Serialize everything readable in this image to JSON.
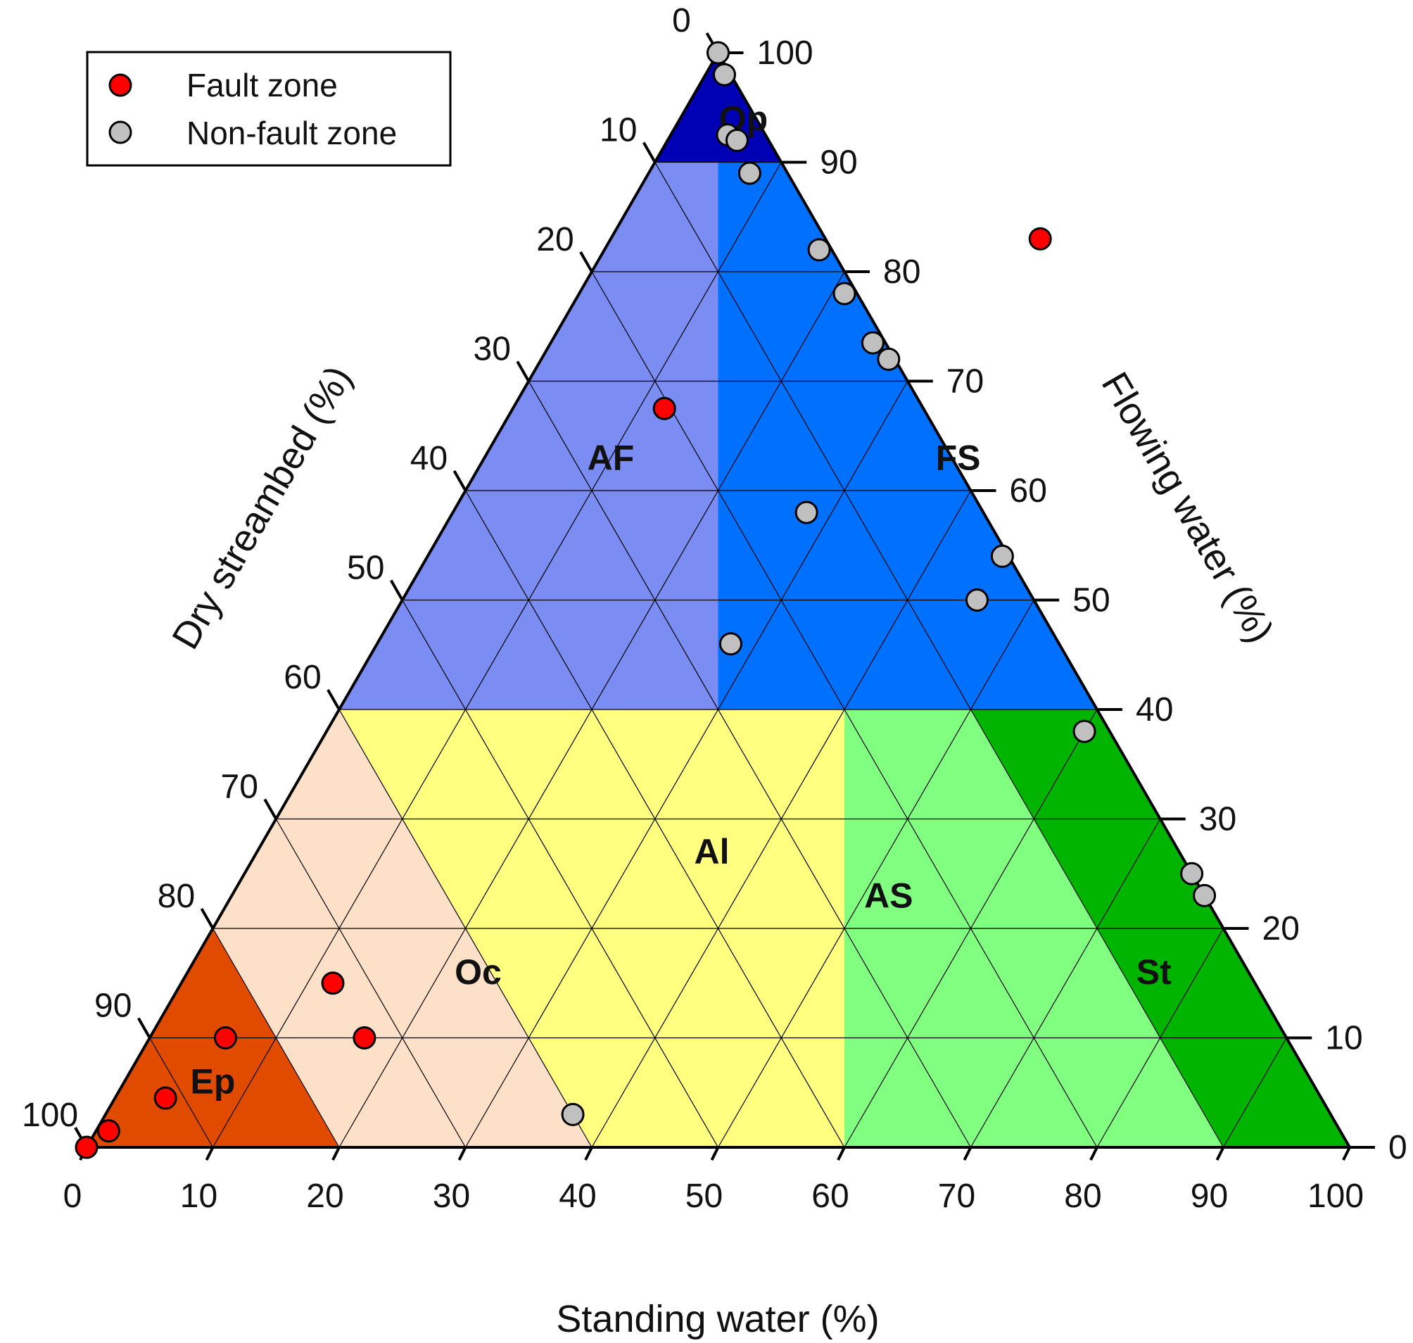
{
  "chart_data": {
    "type": "scatter",
    "subtype": "ternary",
    "axes": {
      "bottom": {
        "label": "Standing water (%)",
        "ticks": [
          0,
          10,
          20,
          30,
          40,
          50,
          60,
          70,
          80,
          90,
          100
        ],
        "range": [
          0,
          100
        ]
      },
      "left": {
        "label": "Dry streambed (%)",
        "ticks": [
          0,
          10,
          20,
          30,
          40,
          50,
          60,
          70,
          80,
          90,
          100
        ],
        "range": [
          0,
          100
        ]
      },
      "right": {
        "label": "Flowing water (%)",
        "ticks": [
          0,
          10,
          20,
          30,
          40,
          50,
          60,
          70,
          80,
          90,
          100
        ],
        "range": [
          0,
          100
        ]
      }
    },
    "grid": true,
    "grid_step": 10,
    "legend": {
      "position": "top-left",
      "items": [
        {
          "label": "Fault zone",
          "color": "#ff0000"
        },
        {
          "label": "Non-fault zone",
          "color": "#c0c0c0"
        }
      ]
    },
    "regions": [
      {
        "label": "Qp",
        "color": "#0000b4",
        "rule": "flowing >= 90"
      },
      {
        "label": "AF",
        "color": "#7b8cf3",
        "rule": "40 <= flowing < 90 and standing < 30"
      },
      {
        "label": "FS",
        "color": "#0070ff",
        "rule": "40 <= flowing < 90 and standing >= 30"
      },
      {
        "label": "Ep",
        "color": "#e14b00",
        "rule": "flowing < 40 and dry >= 80"
      },
      {
        "label": "Oc",
        "color": "#fde0c8",
        "rule": "flowing < 40 and 60 <= dry < 80"
      },
      {
        "label": "Al",
        "color": "#ffff80",
        "rule": "flowing < 40 and 40 <= dry < 60"
      },
      {
        "label": "AS",
        "color": "#80ff80",
        "rule": "flowing < 40 and 10 <= dry < 40"
      },
      {
        "label": "St",
        "color": "#00b400",
        "rule": "flowing < 40 and dry < 10"
      }
    ],
    "series": [
      {
        "name": "Fault zone",
        "color": "#ff0000",
        "points": [
          {
            "standing": 0,
            "flowing": 0
          },
          {
            "standing": 1,
            "flowing": 1.5
          },
          {
            "standing": 4,
            "flowing": 4.5
          },
          {
            "standing": 6,
            "flowing": 10
          },
          {
            "standing": 12,
            "flowing": 15
          },
          {
            "standing": 17,
            "flowing": 10
          },
          {
            "standing": 34,
            "flowing": 83
          },
          {
            "standing": 12,
            "flowing": 67.5
          }
        ]
      },
      {
        "name": "Non-fault zone",
        "color": "#c0c0c0",
        "points": [
          {
            "standing": 0,
            "flowing": 100
          },
          {
            "standing": 1.5,
            "flowing": 98
          },
          {
            "standing": 4.5,
            "flowing": 92.5
          },
          {
            "standing": 5.5,
            "flowing": 92
          },
          {
            "standing": 8,
            "flowing": 89
          },
          {
            "standing": 17,
            "flowing": 82
          },
          {
            "standing": 21,
            "flowing": 78
          },
          {
            "standing": 25.5,
            "flowing": 73.5
          },
          {
            "standing": 27.5,
            "flowing": 72
          },
          {
            "standing": 45.5,
            "flowing": 54
          },
          {
            "standing": 45.5,
            "flowing": 50
          },
          {
            "standing": 60,
            "flowing": 38
          },
          {
            "standing": 75,
            "flowing": 25
          },
          {
            "standing": 77,
            "flowing": 23
          },
          {
            "standing": 28,
            "flowing": 58
          },
          {
            "standing": 28,
            "flowing": 46
          },
          {
            "standing": 37,
            "flowing": 3
          }
        ]
      }
    ],
    "region_labels": [
      "Qp",
      "AF",
      "FS",
      "Ep",
      "Oc",
      "Al",
      "AS",
      "St"
    ]
  }
}
